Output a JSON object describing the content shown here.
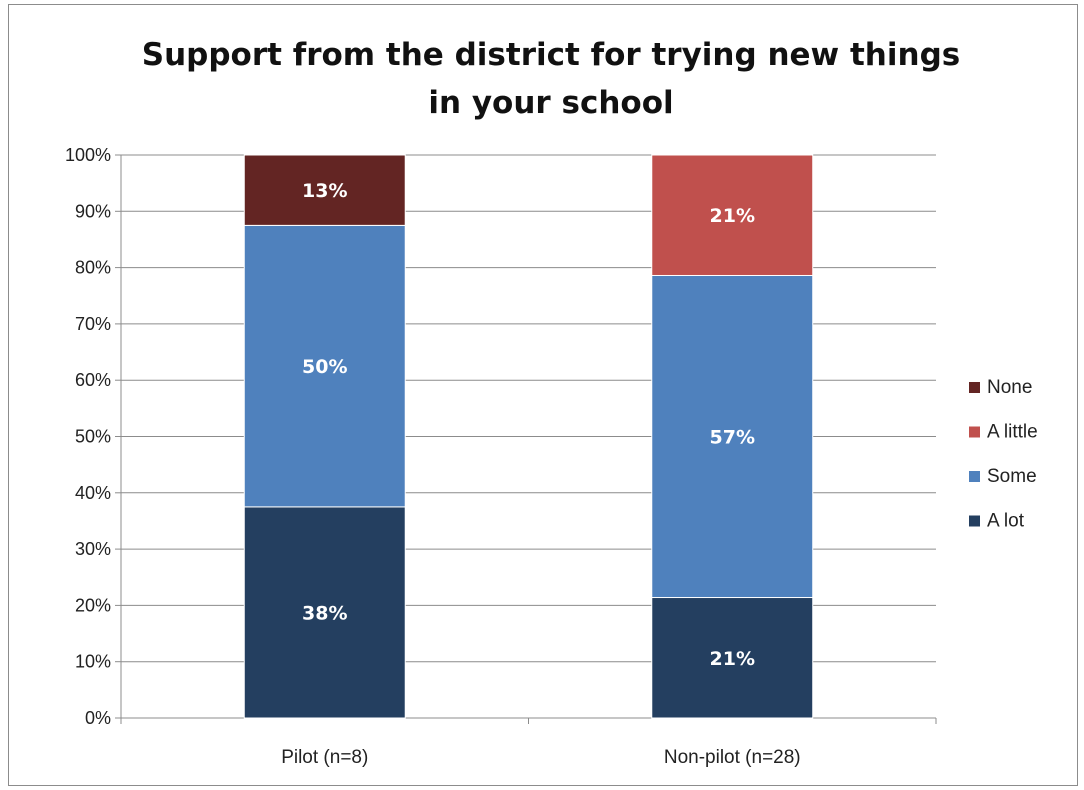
{
  "chart_data": {
    "type": "bar",
    "stacked": true,
    "title_lines": [
      "Support from the district for trying new things",
      "in your school"
    ],
    "categories": [
      "Pilot (n=8)",
      "Non-pilot (n=28)"
    ],
    "series": [
      {
        "name": "A lot",
        "values": [
          37.5,
          21.4
        ],
        "labels": [
          "38%",
          "21%"
        ],
        "color": "#243f60"
      },
      {
        "name": "Some",
        "values": [
          50.0,
          57.2
        ],
        "labels": [
          "50%",
          "57%"
        ],
        "color": "#4f81bd"
      },
      {
        "name": "A little",
        "values": [
          0,
          21.4
        ],
        "labels": [
          "",
          "21%"
        ],
        "color": "#c0504d"
      },
      {
        "name": "None",
        "values": [
          12.5,
          0
        ],
        "labels": [
          "13%",
          ""
        ],
        "color": "#632523"
      }
    ],
    "y_ticks": [
      "0%",
      "10%",
      "20%",
      "30%",
      "40%",
      "50%",
      "60%",
      "70%",
      "80%",
      "90%",
      "100%"
    ],
    "ylim": [
      0,
      100
    ],
    "grid": true,
    "legend": {
      "position": "right",
      "order": [
        "None",
        "A little",
        "Some",
        "A lot"
      ]
    }
  }
}
